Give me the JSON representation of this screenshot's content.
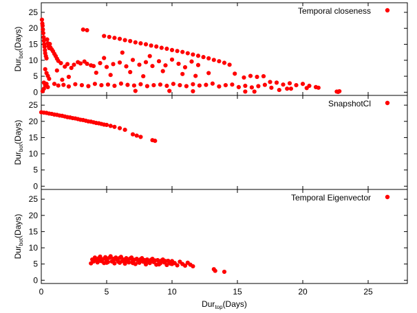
{
  "chart_data": [
    {
      "type": "scatter",
      "series": [
        {
          "name": "Temporal closeness",
          "color": "#ff0000"
        }
      ],
      "ylabel_main": "Dur",
      "ylabel_sub": "bot",
      "ylabel_tail": "(Days)",
      "xlim": [
        0,
        28
      ],
      "ylim": [
        -1,
        28
      ],
      "yticks": [
        0,
        5,
        10,
        15,
        20,
        25
      ],
      "xtick_labels_shown": false,
      "grid": false,
      "legend": "top-right",
      "points": [
        [
          0.05,
          22.7
        ],
        [
          0.08,
          21.5
        ],
        [
          0.1,
          20.8
        ],
        [
          0.12,
          19.6
        ],
        [
          0.15,
          18.5
        ],
        [
          0.18,
          17.2
        ],
        [
          0.2,
          16.1
        ],
        [
          0.22,
          15.0
        ],
        [
          0.25,
          14.2
        ],
        [
          0.28,
          13.1
        ],
        [
          0.3,
          12.2
        ],
        [
          0.35,
          11.3
        ],
        [
          0.4,
          10.6
        ],
        [
          0.45,
          16.5
        ],
        [
          0.5,
          15.3
        ],
        [
          0.55,
          14.5
        ],
        [
          0.6,
          13.8
        ],
        [
          0.65,
          15.1
        ],
        [
          0.7,
          14.0
        ],
        [
          0.8,
          13.4
        ],
        [
          0.9,
          12.8
        ],
        [
          1.0,
          12.0
        ],
        [
          1.1,
          11.3
        ],
        [
          1.2,
          10.5
        ],
        [
          1.3,
          9.8
        ],
        [
          0.3,
          7.2
        ],
        [
          0.4,
          6.0
        ],
        [
          0.5,
          5.1
        ],
        [
          0.6,
          4.2
        ],
        [
          0.2,
          3.0
        ],
        [
          0.3,
          2.2
        ],
        [
          0.4,
          2.6
        ],
        [
          0.5,
          1.6
        ],
        [
          0.2,
          1.1
        ],
        [
          0.1,
          0.3
        ],
        [
          1.5,
          9.1
        ],
        [
          2.0,
          8.8
        ],
        [
          2.5,
          8.6
        ],
        [
          3.0,
          9.0
        ],
        [
          3.5,
          8.9
        ],
        [
          1.8,
          8.0
        ],
        [
          2.3,
          7.6
        ],
        [
          2.8,
          9.4
        ],
        [
          3.3,
          9.6
        ],
        [
          3.8,
          8.4
        ],
        [
          1.2,
          6.8
        ],
        [
          2.1,
          4.8
        ],
        [
          1.6,
          3.9
        ],
        [
          1.0,
          2.6
        ],
        [
          1.3,
          2.1
        ],
        [
          1.7,
          2.3
        ],
        [
          2.1,
          1.8
        ],
        [
          2.6,
          2.5
        ],
        [
          3.1,
          2.2
        ],
        [
          3.6,
          1.9
        ],
        [
          4.1,
          2.6
        ],
        [
          4.6,
          2.2
        ],
        [
          5.1,
          2.4
        ],
        [
          5.6,
          2.0
        ],
        [
          6.1,
          2.7
        ],
        [
          6.6,
          2.3
        ],
        [
          7.1,
          2.1
        ],
        [
          7.6,
          2.5
        ],
        [
          8.1,
          1.9
        ],
        [
          8.6,
          2.2
        ],
        [
          9.1,
          2.4
        ],
        [
          9.6,
          2.0
        ],
        [
          10.1,
          2.6
        ],
        [
          10.6,
          2.2
        ],
        [
          11.1,
          1.9
        ],
        [
          11.6,
          2.5
        ],
        [
          12.1,
          2.1
        ],
        [
          12.6,
          2.3
        ],
        [
          13.1,
          2.7
        ],
        [
          13.6,
          1.8
        ],
        [
          14.1,
          2.2
        ],
        [
          14.6,
          2.4
        ],
        [
          15.1,
          1.6
        ],
        [
          15.6,
          2.0
        ],
        [
          16.1,
          1.5
        ],
        [
          16.6,
          1.9
        ],
        [
          17.1,
          2.3
        ],
        [
          17.6,
          1.4
        ],
        [
          4.0,
          8.2
        ],
        [
          4.5,
          9.1
        ],
        [
          5.0,
          7.9
        ],
        [
          5.5,
          8.8
        ],
        [
          6.0,
          9.3
        ],
        [
          6.5,
          8.1
        ],
        [
          7.0,
          10.1
        ],
        [
          7.5,
          8.6
        ],
        [
          8.0,
          9.4
        ],
        [
          8.5,
          8.2
        ],
        [
          9.0,
          9.7
        ],
        [
          9.5,
          8.4
        ],
        [
          10.0,
          10.2
        ],
        [
          10.5,
          8.9
        ],
        [
          11.0,
          7.8
        ],
        [
          11.5,
          9.6
        ],
        [
          12.0,
          8.5
        ],
        [
          4.2,
          6.1
        ],
        [
          5.3,
          5.4
        ],
        [
          6.8,
          6.3
        ],
        [
          7.8,
          5.0
        ],
        [
          9.3,
          6.6
        ],
        [
          10.8,
          5.7
        ],
        [
          11.8,
          5.1
        ],
        [
          12.8,
          6.0
        ],
        [
          4.8,
          10.7
        ],
        [
          6.2,
          12.4
        ],
        [
          8.3,
          11.3
        ],
        [
          3.2,
          19.6
        ],
        [
          3.5,
          19.4
        ],
        [
          4.8,
          17.6
        ],
        [
          5.2,
          17.3
        ],
        [
          5.6,
          17.0
        ],
        [
          6.0,
          16.7
        ],
        [
          6.4,
          16.3
        ],
        [
          6.8,
          16.0
        ],
        [
          7.2,
          15.6
        ],
        [
          7.6,
          15.3
        ],
        [
          8.0,
          15.0
        ],
        [
          8.4,
          14.6
        ],
        [
          8.8,
          14.3
        ],
        [
          9.2,
          13.9
        ],
        [
          9.6,
          13.6
        ],
        [
          10.0,
          13.2
        ],
        [
          10.4,
          12.9
        ],
        [
          10.8,
          12.6
        ],
        [
          11.2,
          12.2
        ],
        [
          11.6,
          11.8
        ],
        [
          12.0,
          11.4
        ],
        [
          12.4,
          11.0
        ],
        [
          12.8,
          10.6
        ],
        [
          13.2,
          10.1
        ],
        [
          13.6,
          9.7
        ],
        [
          14.0,
          9.2
        ],
        [
          14.4,
          8.6
        ],
        [
          14.8,
          5.8
        ],
        [
          15.5,
          4.6
        ],
        [
          16.0,
          5.1
        ],
        [
          16.5,
          4.8
        ],
        [
          17.0,
          5.0
        ],
        [
          17.5,
          3.2
        ],
        [
          18.0,
          3.0
        ],
        [
          18.5,
          2.4
        ],
        [
          19.0,
          2.8
        ],
        [
          19.5,
          2.2
        ],
        [
          20.0,
          2.6
        ],
        [
          20.5,
          2.0
        ],
        [
          21.0,
          1.6
        ],
        [
          18.2,
          0.7
        ],
        [
          19.1,
          1.1
        ],
        [
          20.3,
          1.3
        ],
        [
          21.2,
          1.4
        ],
        [
          7.2,
          0.4
        ],
        [
          9.8,
          0.4
        ],
        [
          11.6,
          0.3
        ],
        [
          15.6,
          0.2
        ],
        [
          16.3,
          0.2
        ],
        [
          18.8,
          1.1
        ],
        [
          22.6,
          0.2
        ],
        [
          22.7,
          0.1
        ],
        [
          22.8,
          0.3
        ]
      ]
    },
    {
      "type": "scatter",
      "series": [
        {
          "name": "SnapshotCl",
          "color": "#ff0000"
        }
      ],
      "ylabel_main": "Dur",
      "ylabel_sub": "bot",
      "ylabel_tail": "(Days)",
      "xlim": [
        0,
        28
      ],
      "ylim": [
        -1,
        28
      ],
      "yticks": [
        0,
        5,
        10,
        15,
        20,
        25
      ],
      "xtick_labels_shown": false,
      "grid": false,
      "legend": "top-right",
      "points": [
        [
          0.0,
          22.8
        ],
        [
          0.2,
          22.7
        ],
        [
          0.4,
          22.6
        ],
        [
          0.6,
          22.4
        ],
        [
          0.8,
          22.3
        ],
        [
          1.0,
          22.1
        ],
        [
          1.2,
          22.0
        ],
        [
          1.4,
          21.8
        ],
        [
          1.6,
          21.7
        ],
        [
          1.8,
          21.5
        ],
        [
          2.0,
          21.3
        ],
        [
          2.2,
          21.2
        ],
        [
          2.4,
          21.0
        ],
        [
          2.6,
          20.9
        ],
        [
          2.8,
          20.7
        ],
        [
          3.0,
          20.5
        ],
        [
          3.2,
          20.4
        ],
        [
          3.4,
          20.2
        ],
        [
          3.6,
          20.0
        ],
        [
          3.8,
          19.9
        ],
        [
          4.0,
          19.7
        ],
        [
          4.2,
          19.5
        ],
        [
          4.4,
          19.4
        ],
        [
          4.6,
          19.2
        ],
        [
          4.8,
          19.0
        ],
        [
          5.0,
          18.9
        ],
        [
          5.3,
          18.6
        ],
        [
          5.6,
          18.3
        ],
        [
          6.0,
          17.9
        ],
        [
          6.4,
          17.4
        ],
        [
          7.0,
          16.0
        ],
        [
          7.3,
          15.6
        ],
        [
          7.6,
          15.2
        ],
        [
          8.5,
          14.2
        ],
        [
          8.7,
          14.0
        ]
      ]
    },
    {
      "type": "scatter",
      "series": [
        {
          "name": "Temporal Eigenvector",
          "color": "#ff0000"
        }
      ],
      "ylabel_main": "Dur",
      "ylabel_sub": "bot",
      "ylabel_tail": "(Days)",
      "xlabel_main": "Dur",
      "xlabel_sub": "top",
      "xlabel_tail": "(Days)",
      "xlim": [
        0,
        28
      ],
      "ylim": [
        -1,
        28
      ],
      "xticks": [
        0,
        5,
        10,
        15,
        20,
        25
      ],
      "yticks": [
        0,
        5,
        10,
        15,
        20,
        25
      ],
      "grid": false,
      "legend": "top-right",
      "points": [
        [
          3.8,
          5.2
        ],
        [
          3.9,
          6.4
        ],
        [
          4.0,
          5.8
        ],
        [
          4.1,
          7.0
        ],
        [
          4.2,
          6.1
        ],
        [
          4.3,
          5.5
        ],
        [
          4.4,
          6.8
        ],
        [
          4.5,
          7.3
        ],
        [
          4.6,
          5.9
        ],
        [
          4.7,
          6.5
        ],
        [
          4.8,
          5.3
        ],
        [
          4.9,
          7.1
        ],
        [
          5.0,
          6.2
        ],
        [
          5.1,
          5.6
        ],
        [
          5.2,
          6.9
        ],
        [
          5.3,
          7.4
        ],
        [
          5.4,
          5.8
        ],
        [
          5.5,
          6.6
        ],
        [
          5.6,
          5.2
        ],
        [
          5.7,
          7.0
        ],
        [
          5.8,
          6.3
        ],
        [
          5.9,
          5.7
        ],
        [
          6.0,
          6.9
        ],
        [
          6.1,
          7.2
        ],
        [
          6.2,
          5.9
        ],
        [
          6.3,
          6.4
        ],
        [
          6.4,
          5.1
        ],
        [
          6.5,
          6.8
        ],
        [
          6.6,
          6.1
        ],
        [
          6.7,
          5.5
        ],
        [
          6.8,
          6.7
        ],
        [
          6.9,
          7.0
        ],
        [
          7.0,
          5.8
        ],
        [
          7.1,
          6.3
        ],
        [
          7.2,
          5.0
        ],
        [
          7.3,
          6.6
        ],
        [
          7.4,
          6.0
        ],
        [
          7.5,
          5.4
        ],
        [
          7.6,
          6.5
        ],
        [
          7.7,
          6.8
        ],
        [
          7.8,
          5.7
        ],
        [
          7.9,
          6.2
        ],
        [
          8.0,
          4.9
        ],
        [
          8.1,
          6.4
        ],
        [
          8.2,
          5.9
        ],
        [
          8.3,
          5.3
        ],
        [
          8.4,
          6.3
        ],
        [
          8.5,
          6.6
        ],
        [
          8.6,
          5.6
        ],
        [
          8.7,
          6.1
        ],
        [
          8.8,
          4.8
        ],
        [
          8.9,
          6.2
        ],
        [
          9.0,
          5.8
        ],
        [
          9.1,
          5.2
        ],
        [
          9.2,
          6.1
        ],
        [
          9.3,
          6.4
        ],
        [
          9.4,
          5.5
        ],
        [
          9.5,
          5.9
        ],
        [
          9.6,
          4.7
        ],
        [
          9.7,
          6.0
        ],
        [
          9.8,
          5.6
        ],
        [
          9.9,
          5.1
        ],
        [
          10.0,
          5.9
        ],
        [
          10.2,
          5.3
        ],
        [
          10.4,
          4.6
        ],
        [
          10.6,
          5.7
        ],
        [
          10.8,
          5.0
        ],
        [
          11.0,
          4.5
        ],
        [
          11.2,
          5.4
        ],
        [
          11.4,
          4.8
        ],
        [
          11.6,
          4.3
        ],
        [
          4.5,
          6.0
        ],
        [
          5.0,
          5.4
        ],
        [
          5.5,
          6.0
        ],
        [
          6.0,
          5.4
        ],
        [
          6.5,
          6.0
        ],
        [
          7.0,
          5.3
        ],
        [
          7.5,
          5.9
        ],
        [
          8.0,
          5.7
        ],
        [
          9.0,
          4.9
        ],
        [
          10.0,
          5.0
        ],
        [
          13.2,
          3.4
        ],
        [
          13.3,
          2.9
        ],
        [
          14.0,
          2.6
        ]
      ]
    }
  ]
}
